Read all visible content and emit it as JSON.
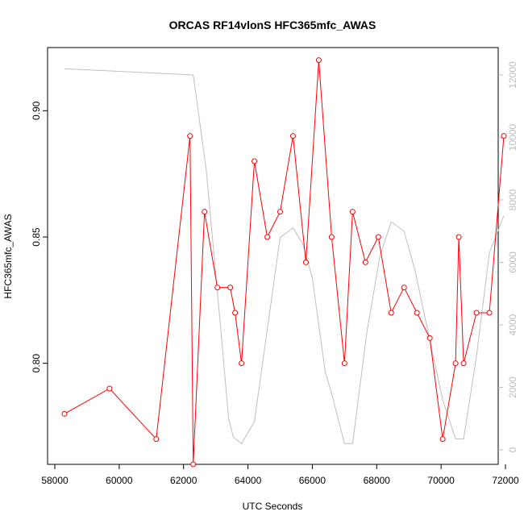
{
  "chart_data": {
    "type": "line",
    "title": "ORCAS RF14vlonS HFC365mfc_AWAS",
    "xlabel": "UTC Seconds",
    "ylabel": "HFC365mfc_AWAS",
    "xlim": [
      58000,
      72000
    ],
    "ylim": [
      0.76,
      0.925
    ],
    "y2lim": [
      0,
      12500
    ],
    "grid": false,
    "legend": "none",
    "x_ticks": [
      "58000",
      "60000",
      "62000",
      "64000",
      "66000",
      "68000",
      "70000",
      "72000"
    ],
    "y_ticks": [
      "0.80",
      "0.85",
      "0.90"
    ],
    "y2_ticks": [
      "0",
      "2000",
      "4000",
      "6000",
      "8000",
      "10000",
      "12000"
    ],
    "series": [
      {
        "color": "#ff0000",
        "axis": "left",
        "markers": "open-circle",
        "x": [
          58300,
          59700,
          61150,
          62200,
          62300,
          62650,
          63050,
          63450,
          63600,
          63800,
          64200,
          64600,
          65000,
          65400,
          65800,
          66200,
          66600,
          67000,
          67250,
          67650,
          68050,
          68450,
          68850,
          69250,
          69650,
          70050,
          70450,
          70550,
          70700,
          71100,
          71500,
          71950
        ],
        "values": [
          0.78,
          0.79,
          0.77,
          0.89,
          0.76,
          0.86,
          0.83,
          0.83,
          0.82,
          0.8,
          0.88,
          0.85,
          0.86,
          0.89,
          0.84,
          0.92,
          0.85,
          0.8,
          0.86,
          0.84,
          0.85,
          0.82,
          0.83,
          0.82,
          0.81,
          0.77,
          0.8,
          0.85,
          0.8,
          0.82,
          0.82,
          0.89
        ]
      },
      {
        "color": "#bebebe",
        "axis": "right",
        "markers": "none",
        "x": [
          58300,
          62300,
          62700,
          63100,
          63400,
          63550,
          63800,
          64200,
          65000,
          65400,
          65700,
          66000,
          66400,
          66600,
          67000,
          67250,
          67700,
          68100,
          68450,
          68850,
          69200,
          69650,
          70050,
          70450,
          70700,
          71100,
          71500,
          71950
        ],
        "values": [
          12200,
          12000,
          9000,
          4500,
          1000,
          400,
          200,
          900,
          6800,
          7100,
          6600,
          5500,
          2500,
          1800,
          200,
          200,
          3800,
          6200,
          7300,
          7000,
          5700,
          3500,
          1600,
          350,
          350,
          3000,
          6300,
          7500
        ]
      }
    ]
  }
}
